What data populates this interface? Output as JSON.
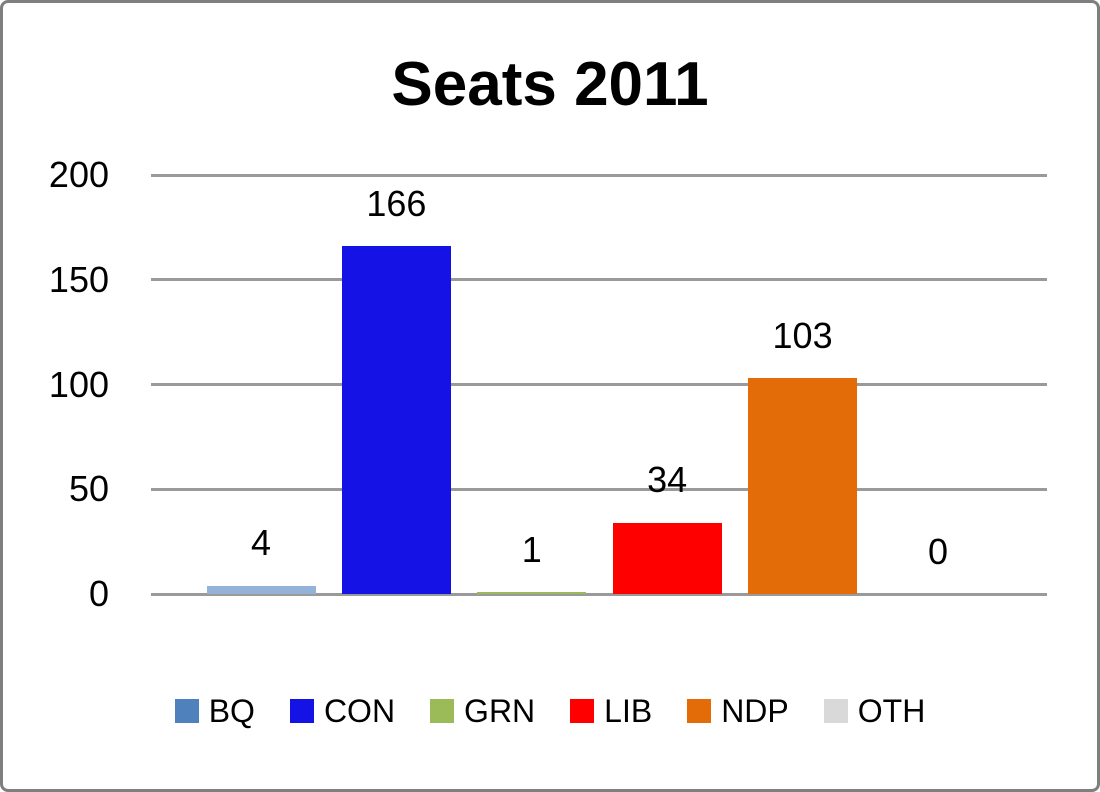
{
  "chart_data": {
    "type": "bar",
    "title": "Seats 2011",
    "categories": [
      "BQ",
      "CON",
      "GRN",
      "LIB",
      "NDP",
      "OTH"
    ],
    "values": [
      4,
      166,
      1,
      34,
      103,
      0
    ],
    "bar_colors": [
      "#95B3D7",
      "#1512E6",
      "#9BBB59",
      "#FF0000",
      "#E36C09",
      "#D9D9D9"
    ],
    "legend_colors": [
      "#4F81BD",
      "#1512E6",
      "#9BBB59",
      "#FF0000",
      "#E36C09",
      "#D9D9D9"
    ],
    "xlabel": "",
    "ylabel": "",
    "ylim": [
      0,
      200
    ],
    "yticks": [
      200,
      150,
      100,
      50,
      0
    ],
    "grid": true,
    "gridline_color": "#9A9A9A",
    "legend_position": "bottom",
    "background_color": "#FFFFFF",
    "border_color": "#7F7F7F"
  }
}
